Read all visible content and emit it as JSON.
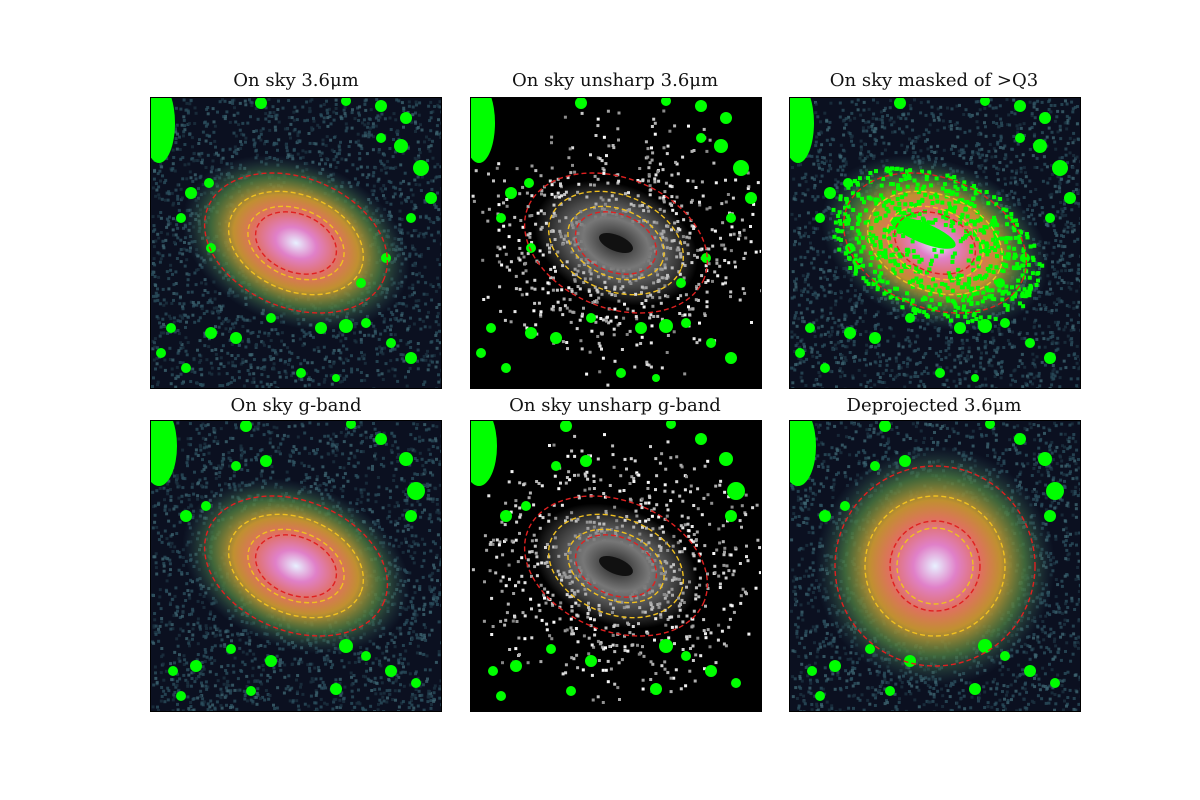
{
  "panels": [
    {
      "title": "On sky 3.6μm",
      "style": "color"
    },
    {
      "title": "On sky unsharp 3.6μm",
      "style": "unsharp"
    },
    {
      "title": "On sky masked of >Q3",
      "style": "masked"
    },
    {
      "title": "On sky g-band",
      "style": "color"
    },
    {
      "title": "On sky unsharp g-band",
      "style": "unsharp"
    },
    {
      "title": "Deprojected 3.6μm",
      "style": "deprojected"
    }
  ],
  "colors": {
    "mask": "#00ff00",
    "ellipse_outer": "#e02020",
    "ellipse_mid": "#f0c020",
    "sky_dark": "#0b1020",
    "sky_mid": "#2a4d5c"
  }
}
